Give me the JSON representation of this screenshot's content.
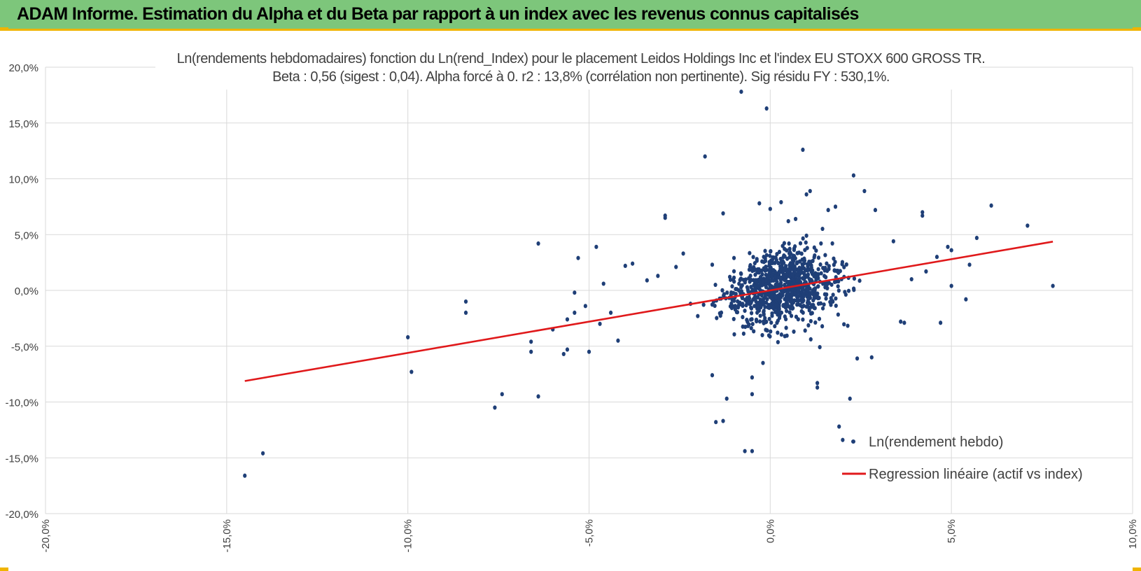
{
  "header": {
    "title": "ADAM Informe. Estimation du Alpha et du Beta par rapport à un index avec les revenus connus capitalisés"
  },
  "chart_data": {
    "type": "scatter",
    "title": "Ln(rendements hebdomadaires) fonction du Ln(rend_Index) pour le placement Leidos Holdings Inc et l'index EU STOXX 600 GROSS TR.",
    "subtitle": "Beta : 0,56 (sigest : 0,04). Alpha forcé à 0. r2 : 13,8% (corrélation non pertinente). Sig résidu FY : 530,1%.",
    "xlim": [
      -20,
      10
    ],
    "ylim": [
      -20,
      20
    ],
    "x_ticks": [
      "-20,0%",
      "-15,0%",
      "-10,0%",
      "-5,0%",
      "0,0%",
      "5,0%",
      "10,0%"
    ],
    "y_ticks": [
      "20,0%",
      "15,0%",
      "10,0%",
      "5,0%",
      "0,0%",
      "-5,0%",
      "-10,0%",
      "-15,0%",
      "-20,0%"
    ],
    "grid": true,
    "legend_position": "bottom-right",
    "colors": {
      "points": "#1f3f77",
      "regression": "#e0191b",
      "grid": "#d9d9d9",
      "banner": "#7dc67b",
      "banner_border": "#f0b400"
    },
    "series": [
      {
        "name": "Ln(rendement hebdo)",
        "type": "scatter",
        "points": [
          [
            -14.5,
            -16.6
          ],
          [
            -14.0,
            -14.6
          ],
          [
            -10.0,
            -4.2
          ],
          [
            -9.9,
            -7.3
          ],
          [
            -8.4,
            -1.0
          ],
          [
            -8.4,
            -2.0
          ],
          [
            -7.6,
            -10.5
          ],
          [
            -7.4,
            -9.3
          ],
          [
            -6.4,
            4.2
          ],
          [
            -6.4,
            -9.5
          ],
          [
            -6.6,
            -4.6
          ],
          [
            -6.6,
            -5.5
          ],
          [
            -6.0,
            -3.5
          ],
          [
            -5.6,
            -2.6
          ],
          [
            -5.6,
            -5.3
          ],
          [
            -5.7,
            -5.7
          ],
          [
            -5.4,
            -0.2
          ],
          [
            -5.3,
            2.9
          ],
          [
            -5.4,
            -2.0
          ],
          [
            -5.1,
            -1.4
          ],
          [
            -5.0,
            -5.5
          ],
          [
            -4.8,
            3.9
          ],
          [
            -4.7,
            -3.0
          ],
          [
            -4.6,
            0.6
          ],
          [
            -4.4,
            -2.0
          ],
          [
            -4.2,
            -4.5
          ],
          [
            -4.0,
            2.2
          ],
          [
            -3.8,
            2.4
          ],
          [
            -3.4,
            0.9
          ],
          [
            -3.1,
            1.3
          ],
          [
            -2.9,
            6.5
          ],
          [
            -2.9,
            6.7
          ],
          [
            -2.6,
            2.1
          ],
          [
            -2.4,
            3.3
          ],
          [
            -2.2,
            -1.2
          ],
          [
            -2.0,
            -2.3
          ],
          [
            -1.8,
            12.0
          ],
          [
            -1.6,
            -7.6
          ],
          [
            -1.6,
            2.3
          ],
          [
            -1.5,
            -11.8
          ],
          [
            -1.3,
            -11.7
          ],
          [
            -1.3,
            6.9
          ],
          [
            -1.2,
            -9.7
          ],
          [
            -1.0,
            2.9
          ],
          [
            -0.7,
            -14.4
          ],
          [
            -0.8,
            17.8
          ],
          [
            -0.1,
            16.3
          ],
          [
            -0.2,
            -6.5
          ],
          [
            -0.5,
            -7.8
          ],
          [
            -0.5,
            -9.3
          ],
          [
            -0.5,
            -14.4
          ],
          [
            -0.3,
            7.8
          ],
          [
            0.0,
            7.3
          ],
          [
            0.3,
            7.9
          ],
          [
            0.5,
            6.2
          ],
          [
            0.7,
            6.4
          ],
          [
            0.9,
            12.6
          ],
          [
            1.0,
            8.6
          ],
          [
            1.1,
            8.9
          ],
          [
            1.0,
            4.9
          ],
          [
            1.3,
            -8.3
          ],
          [
            1.3,
            -8.7
          ],
          [
            1.6,
            7.2
          ],
          [
            1.8,
            7.5
          ],
          [
            1.9,
            -12.2
          ],
          [
            2.0,
            -13.4
          ],
          [
            2.2,
            -9.7
          ],
          [
            2.3,
            10.3
          ],
          [
            2.4,
            -6.1
          ],
          [
            2.6,
            8.9
          ],
          [
            2.8,
            -6.0
          ],
          [
            2.9,
            7.2
          ],
          [
            3.4,
            4.4
          ],
          [
            3.6,
            -2.8
          ],
          [
            3.7,
            -2.9
          ],
          [
            3.9,
            1.0
          ],
          [
            4.2,
            6.7
          ],
          [
            4.2,
            7.0
          ],
          [
            4.3,
            1.7
          ],
          [
            4.6,
            3.0
          ],
          [
            4.7,
            -2.9
          ],
          [
            4.9,
            3.9
          ],
          [
            5.0,
            3.6
          ],
          [
            5.0,
            0.4
          ],
          [
            5.4,
            -0.8
          ],
          [
            5.5,
            2.3
          ],
          [
            5.7,
            4.7
          ],
          [
            6.1,
            7.6
          ],
          [
            7.1,
            5.8
          ],
          [
            7.8,
            0.4
          ]
        ]
      },
      {
        "name": "Regression linéaire (actif vs index)",
        "type": "line",
        "slope": 0.56,
        "intercept": 0,
        "x_range": [
          -14.5,
          7.8
        ]
      }
    ]
  }
}
